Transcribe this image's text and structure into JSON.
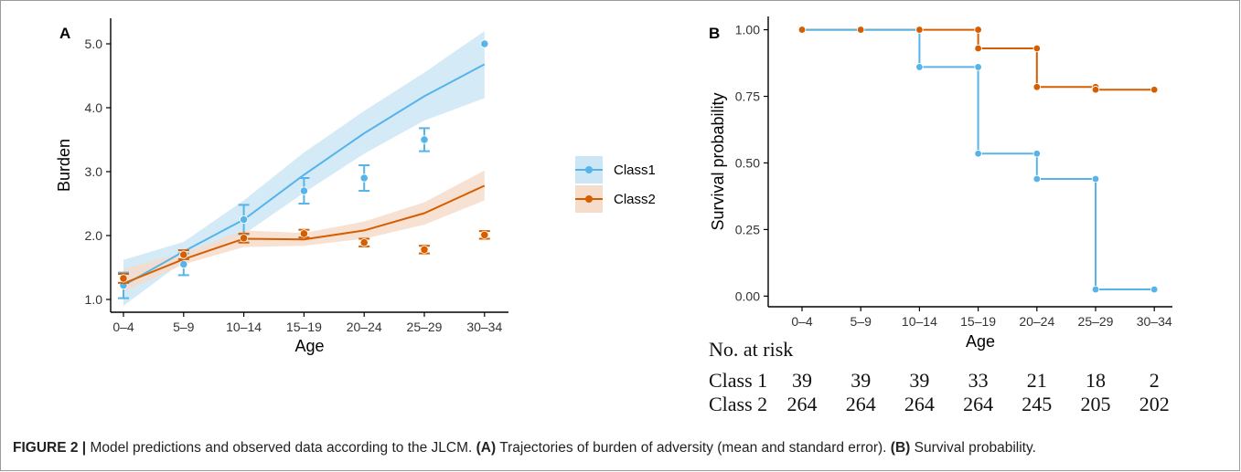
{
  "caption": {
    "label": "FIGURE 2 |",
    "text1": " Model predictions and observed data according to the JLCM. ",
    "a_tag": "(A)",
    "text2": " Trajectories of burden of adversity (mean and standard error). ",
    "b_tag": "(B)",
    "text3": " Survival probability."
  },
  "chart_data": [
    {
      "panel": "A",
      "type": "line",
      "xlabel": "Age",
      "ylabel": "Burden",
      "categories": [
        "0–4",
        "5–9",
        "10–14",
        "15–19",
        "20–24",
        "25–29",
        "30–34"
      ],
      "yticks": [
        "1.0",
        "2.0",
        "3.0",
        "4.0",
        "5.0"
      ],
      "ylim": [
        0.8,
        5.4
      ],
      "grid": false,
      "legend_position": "right",
      "series": [
        {
          "name": "Class1",
          "color": "#56B4E9",
          "predicted": [
            1.22,
            1.75,
            2.25,
            2.95,
            3.6,
            4.18,
            4.68
          ],
          "band_low": [
            0.9,
            1.6,
            2.02,
            2.67,
            3.28,
            3.8,
            4.15
          ],
          "band_high": [
            1.62,
            1.9,
            2.55,
            3.3,
            3.95,
            4.55,
            5.2
          ],
          "observed": [
            1.22,
            1.55,
            2.25,
            2.7,
            2.9,
            3.5,
            5.0
          ],
          "se": [
            0.2,
            0.17,
            0.23,
            0.2,
            0.2,
            0.18,
            0.0
          ]
        },
        {
          "name": "Class2",
          "color": "#D55E00",
          "predicted": [
            1.25,
            1.63,
            1.95,
            1.94,
            2.08,
            2.35,
            2.78
          ],
          "band_low": [
            1.12,
            1.55,
            1.82,
            1.84,
            1.95,
            2.17,
            2.55
          ],
          "band_high": [
            1.48,
            1.73,
            2.08,
            2.04,
            2.22,
            2.52,
            3.02
          ],
          "observed": [
            1.33,
            1.7,
            1.96,
            2.03,
            1.89,
            1.78,
            2.01
          ],
          "se": [
            0.07,
            0.07,
            0.07,
            0.06,
            0.06,
            0.06,
            0.06
          ]
        }
      ]
    },
    {
      "panel": "B",
      "type": "line",
      "step": true,
      "xlabel": "Age",
      "ylabel": "Survival probability",
      "categories": [
        "0–4",
        "5–9",
        "10–14",
        "15–19",
        "20–24",
        "25–29",
        "30–34"
      ],
      "yticks": [
        "0.00",
        "0.25",
        "0.50",
        "0.75",
        "1.00"
      ],
      "ylim": [
        -0.04,
        1.05
      ],
      "grid": false,
      "series": [
        {
          "name": "Class 1",
          "color": "#56B4E9",
          "values": [
            1.0,
            1.0,
            0.86,
            0.535,
            0.44,
            0.025,
            0.025
          ],
          "points": [
            [
              0,
              1.0
            ],
            [
              1,
              1.0
            ],
            [
              2,
              1.0
            ],
            [
              2,
              0.86
            ],
            [
              3,
              0.86
            ],
            [
              3,
              0.535
            ],
            [
              4,
              0.535
            ],
            [
              4,
              0.44
            ],
            [
              5,
              0.44
            ],
            [
              5,
              0.025
            ],
            [
              6,
              0.025
            ]
          ]
        },
        {
          "name": "Class 2",
          "color": "#D55E00",
          "values": [
            1.0,
            1.0,
            1.0,
            0.93,
            0.785,
            0.78,
            0.775
          ],
          "points": [
            [
              0,
              1.0
            ],
            [
              1,
              1.0
            ],
            [
              2,
              1.0
            ],
            [
              3,
              1.0
            ],
            [
              3,
              0.93
            ],
            [
              4,
              0.93
            ],
            [
              4,
              0.785
            ],
            [
              5,
              0.785
            ],
            [
              5,
              0.775
            ],
            [
              6,
              0.775
            ]
          ]
        }
      ],
      "risk_table": {
        "title": "No. at risk",
        "rows": [
          {
            "label": "Class 1",
            "values": [
              "39",
              "39",
              "39",
              "33",
              "21",
              "18",
              "2"
            ]
          },
          {
            "label": "Class 2",
            "values": [
              "264",
              "264",
              "264",
              "264",
              "245",
              "205",
              "202"
            ]
          }
        ]
      }
    }
  ]
}
